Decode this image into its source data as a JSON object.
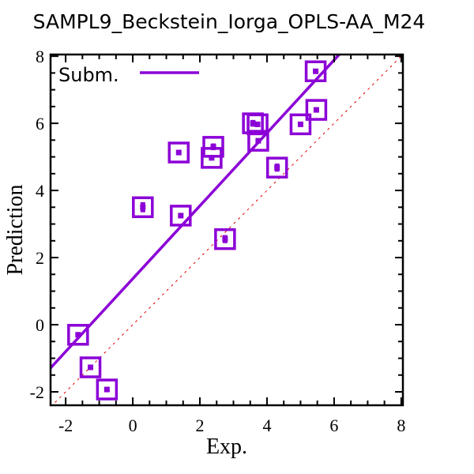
{
  "chart_data": {
    "type": "scatter",
    "title": "SAMPL9_Beckstein_Iorga_OPLS-AA_M24",
    "xlabel": "Exp.",
    "ylabel": "Prediction",
    "xlim": [
      -2.45,
      8.05
    ],
    "ylim": [
      -2.4,
      8.05
    ],
    "xticks": [
      -2,
      0,
      2,
      4,
      6,
      8
    ],
    "yticks": [
      -2,
      0,
      2,
      4,
      6,
      8
    ],
    "xtick_labels": [
      "-2",
      "0",
      "2",
      "4",
      "6",
      "8"
    ],
    "ytick_labels": [
      "-2",
      "0",
      "2",
      "4",
      "6",
      "8"
    ],
    "grid": false,
    "legend": {
      "placement": "top-left",
      "entries": [
        "Subm."
      ]
    },
    "colors": {
      "series": "#8b00d6",
      "identity": "#e00000",
      "axes": "#000000"
    },
    "points": [
      {
        "x": -1.63,
        "y": -0.3,
        "err": 0.05
      },
      {
        "x": -1.26,
        "y": -1.27,
        "err": 0.05
      },
      {
        "x": -0.77,
        "y": -1.93,
        "err": 0.05
      },
      {
        "x": 0.3,
        "y": 3.5,
        "err": 0.15
      },
      {
        "x": 1.37,
        "y": 5.13,
        "err": 0.05
      },
      {
        "x": 1.43,
        "y": 3.25,
        "err": 0.05
      },
      {
        "x": 2.35,
        "y": 4.97,
        "err": 0.05
      },
      {
        "x": 2.4,
        "y": 5.3,
        "err": 0.1
      },
      {
        "x": 2.75,
        "y": 2.55,
        "err": 0.12
      },
      {
        "x": 3.58,
        "y": 6.0,
        "err": 0.1
      },
      {
        "x": 3.72,
        "y": 5.97,
        "err": 0.08
      },
      {
        "x": 3.74,
        "y": 5.48,
        "err": 0.05
      },
      {
        "x": 4.3,
        "y": 4.68,
        "err": 0.12
      },
      {
        "x": 5.0,
        "y": 5.97,
        "err": 0.05
      },
      {
        "x": 5.45,
        "y": 7.55,
        "err": 0.05
      },
      {
        "x": 5.47,
        "y": 6.4,
        "err": 0.05
      }
    ],
    "fit_line": {
      "slope": 1.086,
      "intercept": 1.37
    },
    "identity_line": {
      "slope": 1,
      "intercept": 0
    }
  }
}
